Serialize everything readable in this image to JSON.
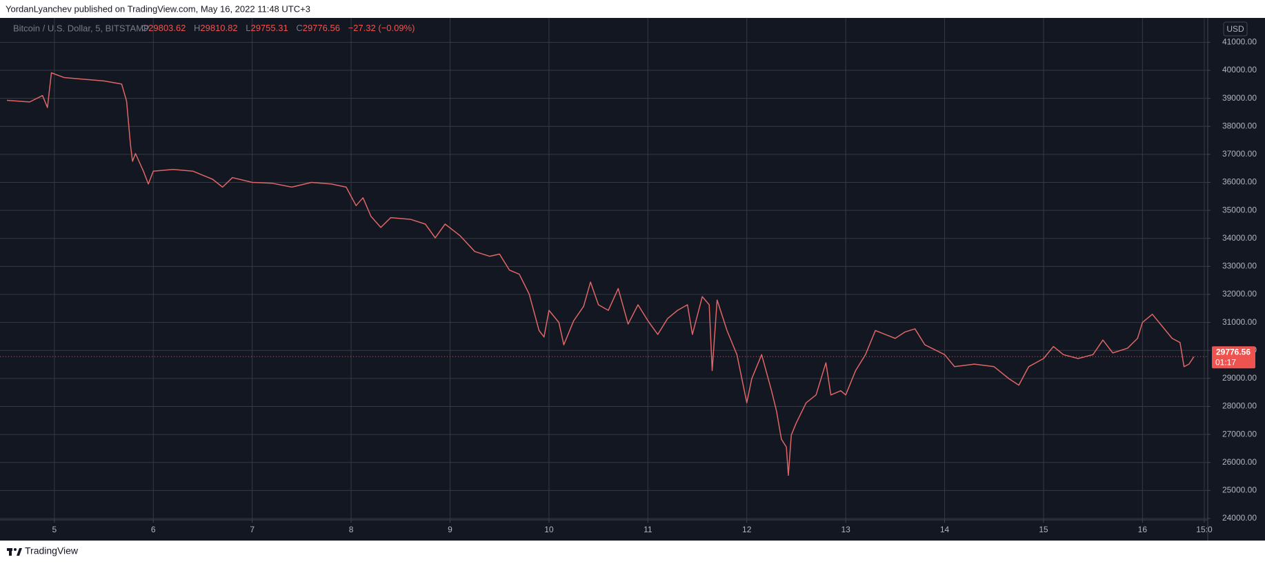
{
  "header": {
    "text": "YordanLyanchev published on TradingView.com, May 16, 2022 11:48 UTC+3"
  },
  "footer": {
    "brand": "TradingView"
  },
  "chart_data": {
    "type": "line",
    "symbol": "Bitcoin / U.S. Dollar, 5, BITSTAMP",
    "ohlc": {
      "o_label": "O",
      "open": "29803.62",
      "h_label": "H",
      "high": "29810.82",
      "l_label": "L",
      "low": "29755.31",
      "c_label": "C",
      "close": "29776.56",
      "change": "−27.32 (−0.09%)"
    },
    "last_price": {
      "value": 29776.56,
      "label": "29776.56"
    },
    "countdown": "01:17",
    "currency": "USD",
    "grid": true,
    "xlim": [
      4.52,
      16.66
    ],
    "ylim": [
      23950,
      41870
    ],
    "xticks": [
      5,
      6,
      7,
      8,
      9,
      10,
      11,
      12,
      13,
      14,
      15,
      16,
      {
        "value": 16.625,
        "label": "15:0"
      }
    ],
    "yticks": [
      {
        "value": 24000,
        "label": "24000.00"
      },
      {
        "value": 25000,
        "label": "25000.00"
      },
      {
        "value": 26000,
        "label": "26000.00"
      },
      {
        "value": 27000,
        "label": "27000.00"
      },
      {
        "value": 28000,
        "label": "28000.00"
      },
      {
        "value": 29000,
        "label": "29000.00"
      },
      {
        "value": 30000,
        "label": "30000.00"
      },
      {
        "value": 31000,
        "label": "31000.00"
      },
      {
        "value": 32000,
        "label": "32000.00"
      },
      {
        "value": 33000,
        "label": "33000.00"
      },
      {
        "value": 34000,
        "label": "34000.00"
      },
      {
        "value": 35000,
        "label": "35000.00"
      },
      {
        "value": 36000,
        "label": "36000.00"
      },
      {
        "value": 37000,
        "label": "37000.00"
      },
      {
        "value": 38000,
        "label": "38000.00"
      },
      {
        "value": 39000,
        "label": "39000.00"
      },
      {
        "value": 40000,
        "label": "40000.00"
      },
      {
        "value": 41000,
        "label": "41000.00"
      }
    ],
    "x": [
      4.52,
      4.75,
      4.88,
      4.93,
      4.97,
      5.1,
      5.3,
      5.5,
      5.68,
      5.73,
      5.77,
      5.79,
      5.82,
      5.9,
      5.95,
      6.0,
      6.2,
      6.4,
      6.6,
      6.7,
      6.8,
      7.0,
      7.2,
      7.4,
      7.6,
      7.8,
      7.95,
      8.05,
      8.12,
      8.2,
      8.3,
      8.4,
      8.6,
      8.75,
      8.85,
      8.95,
      9.1,
      9.25,
      9.4,
      9.5,
      9.6,
      9.7,
      9.8,
      9.9,
      9.95,
      10.0,
      10.1,
      10.15,
      10.25,
      10.35,
      10.42,
      10.5,
      10.6,
      10.7,
      10.8,
      10.9,
      11.0,
      11.1,
      11.2,
      11.3,
      11.4,
      11.45,
      11.55,
      11.62,
      11.65,
      11.7,
      11.8,
      11.9,
      12.0,
      12.05,
      12.15,
      12.25,
      12.3,
      12.35,
      12.4,
      12.42,
      12.45,
      12.5,
      12.6,
      12.7,
      12.8,
      12.85,
      12.95,
      13.0,
      13.1,
      13.2,
      13.3,
      13.4,
      13.5,
      13.6,
      13.7,
      13.8,
      14.0,
      14.1,
      14.3,
      14.5,
      14.65,
      14.75,
      14.85,
      15.0,
      15.1,
      15.2,
      15.35,
      15.5,
      15.6,
      15.7,
      15.85,
      15.95,
      16.0,
      16.1,
      16.2,
      16.3,
      16.38,
      16.42,
      16.47,
      16.52
    ],
    "series": [
      {
        "name": "BTCUSD",
        "color": "#e06666",
        "values": [
          38930,
          38870,
          39100,
          38670,
          39910,
          39740,
          39680,
          39620,
          39510,
          38900,
          37320,
          36750,
          37030,
          36400,
          35940,
          36400,
          36460,
          36400,
          36110,
          35830,
          36170,
          36000,
          35970,
          35830,
          36000,
          35940,
          35830,
          35170,
          35450,
          34790,
          34390,
          34740,
          34680,
          34510,
          34020,
          34510,
          34100,
          33530,
          33360,
          33440,
          32870,
          32720,
          32010,
          30710,
          30480,
          31430,
          31000,
          30200,
          31060,
          31570,
          32440,
          31630,
          31430,
          32210,
          30940,
          31630,
          31060,
          30570,
          31140,
          31430,
          31630,
          30570,
          31920,
          31630,
          29280,
          31800,
          30710,
          29850,
          28130,
          28990,
          29850,
          28560,
          27840,
          26830,
          26550,
          25540,
          26980,
          27410,
          28130,
          28410,
          29560,
          28410,
          28560,
          28410,
          29280,
          29850,
          30710,
          30570,
          30430,
          30660,
          30770,
          30200,
          29850,
          29420,
          29510,
          29420,
          28990,
          28760,
          29420,
          29710,
          30140,
          29850,
          29710,
          29850,
          30370,
          29910,
          30080,
          30430,
          31000,
          31290,
          30860,
          30430,
          30280,
          29420,
          29510,
          29776.56
        ]
      }
    ]
  }
}
